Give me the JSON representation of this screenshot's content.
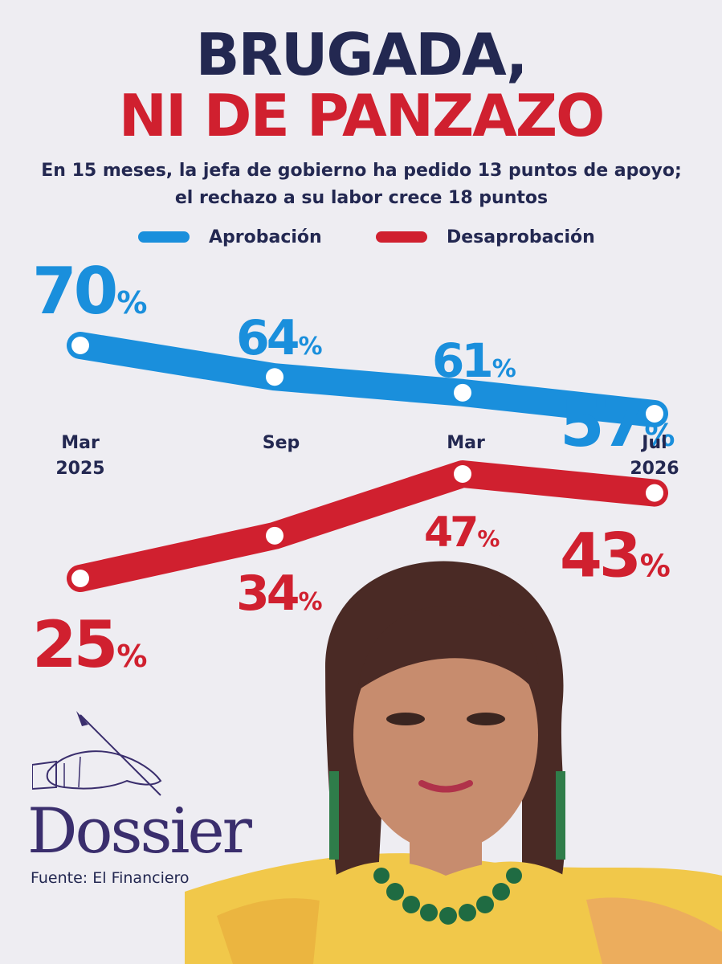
{
  "headline": {
    "line1": "BRUGADA,",
    "line2": "NI DE PANZAZO",
    "line1_color": "#232851",
    "line2_color": "#d0202f"
  },
  "subtitle": "En 15 meses, la jefa de gobierno ha pedido 13 puntos de apoyo; el rechazo a su labor crece 18 puntos",
  "legend": [
    {
      "label": "Aprobación",
      "color": "#1a8fdc"
    },
    {
      "label": "Desaprobación",
      "color": "#d0202f"
    }
  ],
  "chart_data": {
    "type": "line",
    "categories": [
      "Mar 2025",
      "Sep",
      "Mar",
      "Jul 2026"
    ],
    "tick_lines": [
      [
        "Mar",
        "2025"
      ],
      [
        "Sep"
      ],
      [
        "Mar"
      ],
      [
        "Jul",
        "2026"
      ]
    ],
    "value_suffix": "%",
    "series": [
      {
        "name": "Aprobación",
        "color": "#1a8fdc",
        "values": [
          70,
          64,
          61,
          57
        ]
      },
      {
        "name": "Desaprobación",
        "color": "#d0202f",
        "values": [
          25,
          34,
          47,
          43
        ]
      }
    ],
    "legend_position": "top",
    "grid": false
  },
  "logo": {
    "text": "Dossier",
    "icon": "hand-with-quill-icon"
  },
  "source": "Fuente: El Financiero"
}
